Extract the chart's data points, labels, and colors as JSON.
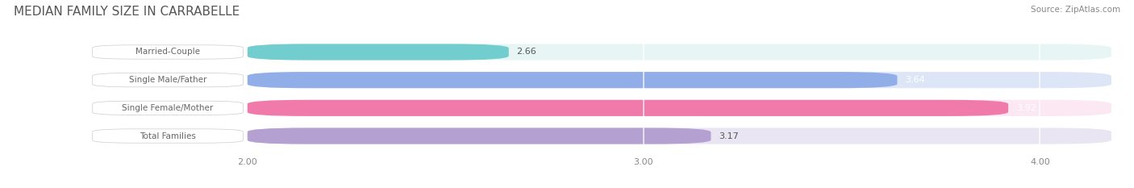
{
  "title": "MEDIAN FAMILY SIZE IN CARRABELLE",
  "source": "Source: ZipAtlas.com",
  "categories": [
    "Married-Couple",
    "Single Male/Father",
    "Single Female/Mother",
    "Total Families"
  ],
  "values": [
    2.66,
    3.64,
    3.92,
    3.17
  ],
  "bar_colors": [
    "#72cece",
    "#91aee8",
    "#f07aaa",
    "#b5a0d2"
  ],
  "bar_bg_colors": [
    "#e8f5f5",
    "#dde6f7",
    "#fce8f2",
    "#eae5f2"
  ],
  "value_label_colors": [
    "#555555",
    "#ffffff",
    "#ffffff",
    "#555555"
  ],
  "xlim": [
    1.82,
    4.18
  ],
  "xmin": 2.0,
  "xticks": [
    2.0,
    3.0,
    4.0
  ],
  "xtick_labels": [
    "2.00",
    "3.00",
    "4.00"
  ],
  "background_color": "#ffffff",
  "bar_height": 0.58,
  "figsize": [
    14.06,
    2.33
  ],
  "dpi": 100
}
